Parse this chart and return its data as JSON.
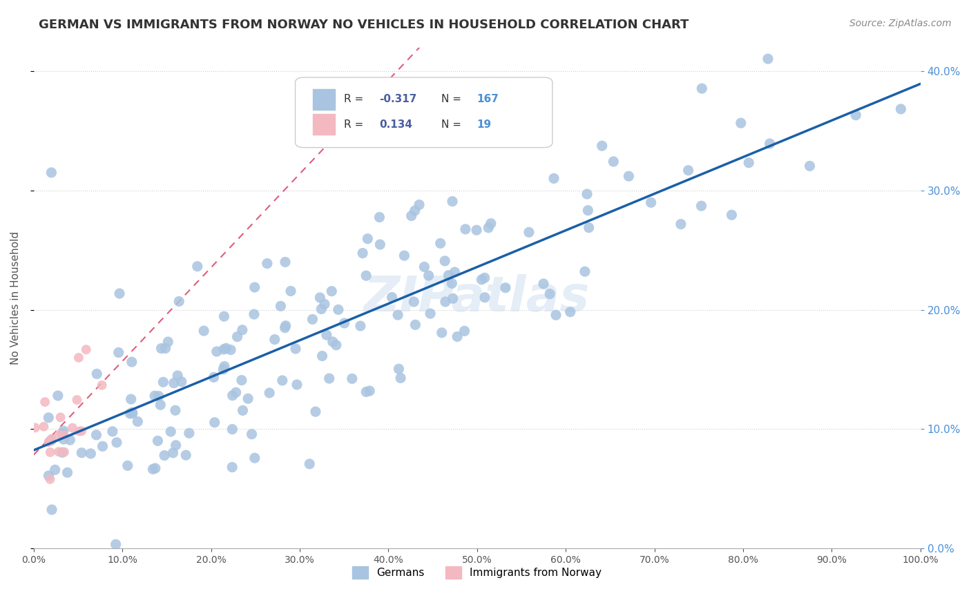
{
  "title": "GERMAN VS IMMIGRANTS FROM NORWAY NO VEHICLES IN HOUSEHOLD CORRELATION CHART",
  "source": "Source: ZipAtlas.com",
  "ylabel": "No Vehicles in Household",
  "xlabel": "",
  "xlim": [
    0,
    1.0
  ],
  "ylim": [
    0,
    0.42
  ],
  "yticks": [
    0.0,
    0.1,
    0.2,
    0.3,
    0.4
  ],
  "xticks": [
    0.0,
    0.1,
    0.2,
    0.3,
    0.4,
    0.5,
    0.6,
    0.7,
    0.8,
    0.9,
    1.0
  ],
  "german_R": -0.317,
  "german_N": 167,
  "norway_R": 0.134,
  "norway_N": 19,
  "german_color": "#a8c4e0",
  "norway_color": "#f4b8c1",
  "german_line_color": "#1a5fa8",
  "norway_line_color": "#e05c7a",
  "watermark": "ZIPatlas",
  "background_color": "#ffffff",
  "grid_color": "#cccccc",
  "title_color": "#333333",
  "axis_label_color": "#555555",
  "right_axis_color": "#4a90d9",
  "legend_R_color": "#4a5fa0",
  "legend_N_color": "#4a90d9",
  "seed": 42
}
